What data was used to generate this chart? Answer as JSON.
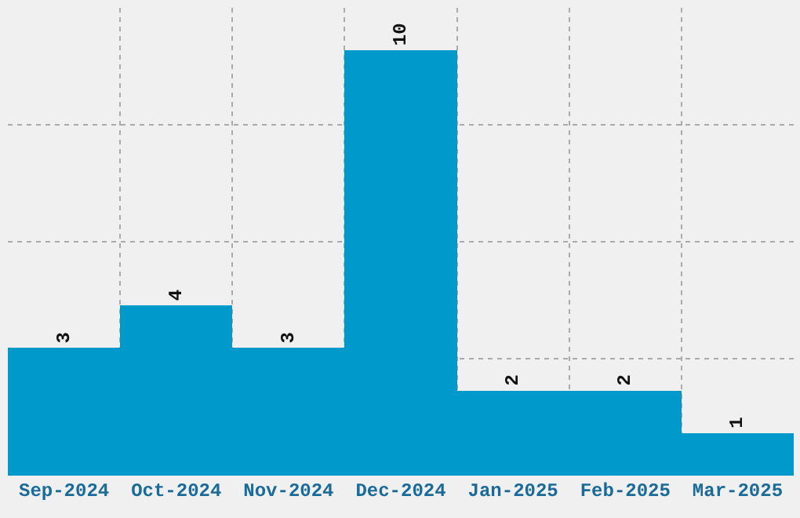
{
  "chart_data": {
    "type": "bar",
    "categories": [
      "Sep-2024",
      "Oct-2024",
      "Nov-2024",
      "Dec-2024",
      "Jan-2025",
      "Feb-2025",
      "Mar-2025"
    ],
    "values": [
      3,
      4,
      3,
      10,
      2,
      2,
      1
    ],
    "color": "#0099cc",
    "data_labels": true,
    "ylim": [
      0,
      11
    ],
    "yticks": [
      {
        "value": 2.75,
        "label": null
      },
      {
        "value": 5.5,
        "label": null
      },
      {
        "value": 8.25,
        "label": null
      }
    ],
    "grid": true,
    "tick_labels": "x"
  }
}
